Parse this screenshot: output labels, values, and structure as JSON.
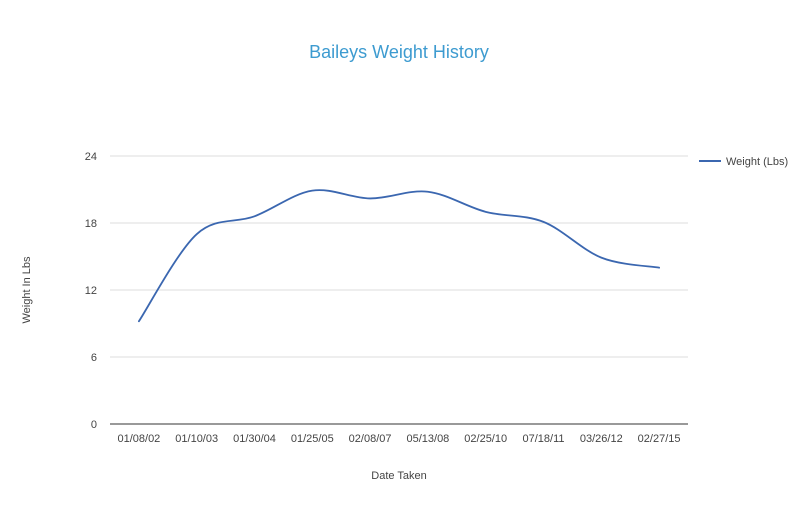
{
  "chart_data": {
    "type": "line",
    "title": "Baileys Weight History",
    "xlabel": "Date Taken",
    "ylabel": "Weight In Lbs",
    "categories": [
      "01/08/02",
      "01/10/03",
      "01/30/04",
      "01/25/05",
      "02/08/07",
      "05/13/08",
      "02/25/10",
      "07/18/11",
      "03/26/12",
      "02/27/15"
    ],
    "series": [
      {
        "name": "Weight (Lbs)",
        "values": [
          9.2,
          17.0,
          18.6,
          20.9,
          20.2,
          20.8,
          19.0,
          18.1,
          14.9,
          14.0
        ],
        "color": "#3b67b0"
      }
    ],
    "ylim": [
      0,
      24
    ],
    "yticks": [
      "0",
      "6",
      "12",
      "18",
      "24"
    ],
    "grid": true,
    "legend_position": "right",
    "curve": "smooth"
  },
  "colors": {
    "title": "#3d9bd0",
    "grid": "#dcdcdc",
    "axis": "#333333",
    "line": "#3b67b0"
  }
}
